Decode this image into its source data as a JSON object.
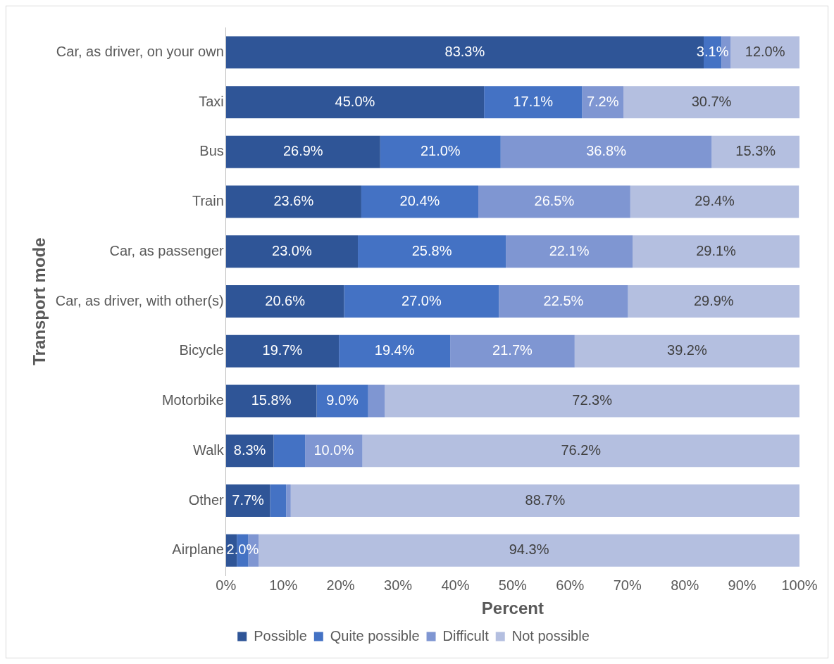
{
  "chart_data": {
    "type": "bar",
    "orientation": "horizontal",
    "stacked": true,
    "xlabel": "Percent",
    "ylabel": "Transport mode",
    "categories": [
      "Car, as driver, on your own",
      "Taxi",
      "Bus",
      "Train",
      "Car, as passenger",
      "Car, as driver, with other(s)",
      "Bicycle",
      "Motorbike",
      "Walk",
      "Other",
      "Airplane"
    ],
    "series": [
      {
        "name": "Possible",
        "color": "#2f5597",
        "values": [
          83.3,
          45.0,
          26.9,
          23.6,
          23.0,
          20.6,
          19.7,
          15.8,
          8.3,
          7.7,
          1.9
        ],
        "value_labels": [
          "83.3%",
          "45.0%",
          "26.9%",
          "23.6%",
          "23.0%",
          "20.6%",
          "19.7%",
          "15.8%",
          "8.3%",
          "7.7%",
          null
        ]
      },
      {
        "name": "Quite possible",
        "color": "#4472c4",
        "values": [
          3.1,
          17.1,
          21.0,
          20.4,
          25.8,
          27.0,
          19.4,
          9.0,
          5.5,
          2.8,
          2.0
        ],
        "value_labels": [
          "3.1%",
          "17.1%",
          "21.0%",
          "20.4%",
          "25.8%",
          "27.0%",
          "19.4%",
          "9.0%",
          null,
          null,
          "2.0%"
        ]
      },
      {
        "name": "Difficult",
        "color": "#7f96d2",
        "values": [
          1.6,
          7.2,
          36.8,
          26.5,
          22.1,
          22.5,
          21.7,
          2.9,
          10.0,
          0.8,
          1.8
        ],
        "value_labels": [
          null,
          "7.2%",
          "36.8%",
          "26.5%",
          "22.1%",
          "22.5%",
          "21.7%",
          null,
          "10.0%",
          null,
          null
        ]
      },
      {
        "name": "Not possible",
        "color": "#b4bfe0",
        "values": [
          12.0,
          30.7,
          15.3,
          29.4,
          29.1,
          29.9,
          39.2,
          72.3,
          76.2,
          88.7,
          94.3
        ],
        "value_labels": [
          "12.0%",
          "30.7%",
          "15.3%",
          "29.4%",
          "29.1%",
          "29.9%",
          "39.2%",
          "72.3%",
          "76.2%",
          "88.7%",
          "94.3%"
        ]
      }
    ],
    "xlim": [
      0,
      100
    ],
    "xticks": [
      {
        "value": 0,
        "label": "0%"
      },
      {
        "value": 10,
        "label": "10%"
      },
      {
        "value": 20,
        "label": "20%"
      },
      {
        "value": 30,
        "label": "30%"
      },
      {
        "value": 40,
        "label": "40%"
      },
      {
        "value": 50,
        "label": "50%"
      },
      {
        "value": 60,
        "label": "60%"
      },
      {
        "value": 70,
        "label": "70%"
      },
      {
        "value": 80,
        "label": "80%"
      },
      {
        "value": 90,
        "label": "90%"
      },
      {
        "value": 100,
        "label": "100%"
      }
    ],
    "grid": false,
    "legend": "bottom"
  }
}
